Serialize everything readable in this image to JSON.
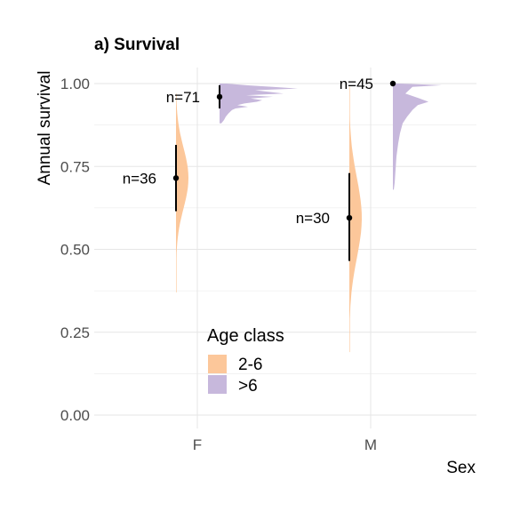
{
  "chart_data": {
    "type": "violin",
    "title": "a) Survival",
    "xlabel": "Sex",
    "ylabel": "Annual survival",
    "categories": [
      "F",
      "M"
    ],
    "y_ticks": [
      "0.00",
      "0.25",
      "0.50",
      "0.75",
      "1.00"
    ],
    "ylim": [
      0,
      1
    ],
    "grid": true,
    "legend": {
      "title": "Age class",
      "position": "bottom-center",
      "entries": [
        {
          "label": "2-6",
          "color": "#fcc79a"
        },
        {
          "label": ">6",
          "color": "#c7b8dc"
        }
      ]
    },
    "series": [
      {
        "name": "2-6",
        "color": "#fcc79a",
        "points": [
          {
            "category": "F",
            "mean": 0.715,
            "lower": 0.615,
            "upper": 0.815,
            "n_label": "n=36",
            "range": [
              0.37,
              0.97
            ]
          },
          {
            "category": "M",
            "mean": 0.595,
            "lower": 0.465,
            "upper": 0.73,
            "n_label": "n=30",
            "range": [
              0.19,
              0.99
            ]
          }
        ]
      },
      {
        "name": ">6",
        "color": "#c7b8dc",
        "points": [
          {
            "category": "F",
            "mean": 0.96,
            "lower": 0.925,
            "upper": 0.995,
            "n_label": "n=71",
            "range": [
              0.88,
              1.0
            ]
          },
          {
            "category": "M",
            "mean": 1.0,
            "lower": 1.0,
            "upper": 1.0,
            "n_label": "n=45",
            "range": [
              0.68,
              1.0
            ]
          }
        ]
      }
    ]
  }
}
